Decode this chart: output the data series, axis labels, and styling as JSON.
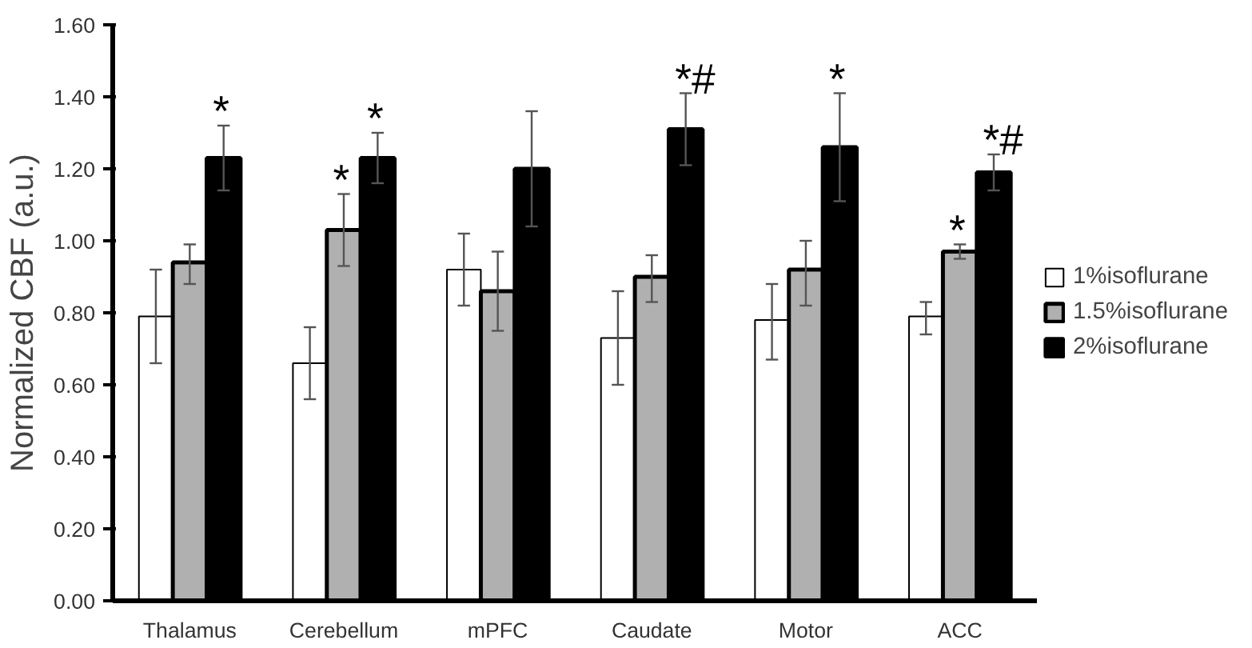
{
  "chart_data": {
    "type": "bar",
    "ylabel": "Normalized CBF (a.u.)",
    "categories": [
      "Thalamus",
      "Cerebellum",
      "mPFC",
      "Caudate",
      "Motor",
      "ACC"
    ],
    "series": [
      {
        "name": "1%isoflurane",
        "color": "#ffffff",
        "values": [
          0.79,
          0.66,
          0.92,
          0.73,
          0.78,
          0.79
        ],
        "errors": [
          [
            0.66,
            0.92
          ],
          [
            0.56,
            0.76
          ],
          [
            0.82,
            1.02
          ],
          [
            0.6,
            0.86
          ],
          [
            0.67,
            0.88
          ],
          [
            0.74,
            0.83
          ]
        ]
      },
      {
        "name": "1.5%isoflurane",
        "color": "#b0b0b0",
        "values": [
          0.94,
          1.03,
          0.86,
          0.9,
          0.92,
          0.97
        ],
        "value_labels": [
          null,
          "*",
          null,
          null,
          null,
          "*"
        ],
        "errors": [
          [
            0.88,
            0.99
          ],
          [
            0.93,
            1.13
          ],
          [
            0.75,
            0.97
          ],
          [
            0.83,
            0.96
          ],
          [
            0.82,
            1.0
          ],
          [
            0.95,
            0.99
          ]
        ]
      },
      {
        "name": "2%isoflurane",
        "color": "#000000",
        "values": [
          1.23,
          1.23,
          1.2,
          1.31,
          1.26,
          1.19
        ],
        "value_labels": [
          "*",
          "*",
          null,
          "*#",
          "*",
          "*#"
        ],
        "errors": [
          [
            1.14,
            1.32
          ],
          [
            1.16,
            1.3
          ],
          [
            1.04,
            1.36
          ],
          [
            1.21,
            1.41
          ],
          [
            1.11,
            1.41
          ],
          [
            1.14,
            1.24
          ]
        ]
      }
    ],
    "ylim": [
      0,
      1.6
    ],
    "yticks": [
      {
        "value": 0,
        "label": "0.00"
      },
      {
        "value": 0.2,
        "label": "0.20"
      },
      {
        "value": 0.4,
        "label": "0.40"
      },
      {
        "value": 0.6,
        "label": "0.60"
      },
      {
        "value": 0.8,
        "label": "0.80"
      },
      {
        "value": 1.0,
        "label": "1.00"
      },
      {
        "value": 1.2,
        "label": "1.20"
      },
      {
        "value": 1.4,
        "label": "1.40"
      },
      {
        "value": 1.6,
        "label": "1.60"
      }
    ],
    "grid": false,
    "legend": "right"
  }
}
